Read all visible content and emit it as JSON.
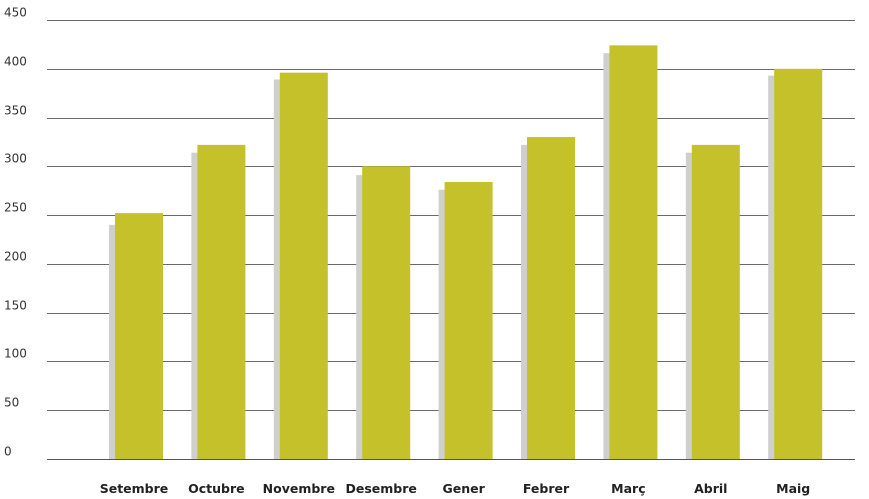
{
  "chart_data": {
    "type": "bar",
    "categories": [
      "Setembre",
      "Octubre",
      "Novembre",
      "Desembre",
      "Gener",
      "Febrer",
      "Març",
      "Abril",
      "Maig"
    ],
    "series": [
      {
        "values": [
          240,
          314,
          389,
          291,
          276,
          322,
          416,
          314,
          393
        ],
        "color": "#cfcfcf"
      },
      {
        "values": [
          252,
          322,
          396,
          300,
          284,
          330,
          424,
          322,
          400
        ],
        "color": "#c4c12a"
      }
    ],
    "yticks": [
      0,
      50,
      100,
      150,
      200,
      250,
      300,
      350,
      400,
      450
    ],
    "ylim": [
      0,
      450
    ],
    "grid": true,
    "legend": "none"
  }
}
